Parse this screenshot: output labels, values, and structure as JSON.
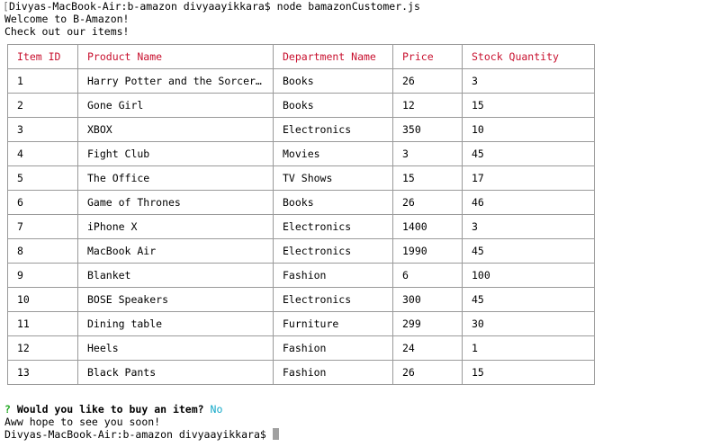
{
  "terminal": {
    "prompt_line": "Divyas-MacBook-Air:b-amazon divyaayikkara$ node bamazonCustomer.js",
    "welcome": "Welcome to B-Amazon!",
    "check_out": "Check out our items!",
    "question_mark": "?",
    "question": "Would you like to buy an item?",
    "answer": "No",
    "farewell": "Aww hope to see you soon!",
    "final_prompt": "Divyas-MacBook-Air:b-amazon divyaayikkara$"
  },
  "table": {
    "headers": [
      "Item ID",
      "Product Name",
      "Department Name",
      "Price",
      "Stock Quantity"
    ],
    "rows": [
      [
        "1",
        "Harry Potter and the Sorcer…",
        "Books",
        "26",
        "3"
      ],
      [
        "2",
        "Gone Girl",
        "Books",
        "12",
        "15"
      ],
      [
        "3",
        "XBOX",
        "Electronics",
        "350",
        "10"
      ],
      [
        "4",
        "Fight Club",
        "Movies",
        "3",
        "45"
      ],
      [
        "5",
        "The Office",
        "TV Shows",
        "15",
        "17"
      ],
      [
        "6",
        "Game of Thrones",
        "Books",
        "26",
        "46"
      ],
      [
        "7",
        "iPhone X",
        "Electronics",
        "1400",
        "3"
      ],
      [
        "8",
        "MacBook Air",
        "Electronics",
        "1990",
        "45"
      ],
      [
        "9",
        "Blanket",
        "Fashion",
        "6",
        "100"
      ],
      [
        "10",
        "BOSE Speakers",
        "Electronics",
        "300",
        "45"
      ],
      [
        "11",
        "Dining table",
        "Furniture",
        "299",
        "30"
      ],
      [
        "12",
        "Heels",
        "Fashion",
        "24",
        "1"
      ],
      [
        "13",
        "Black Pants",
        "Fashion",
        "26",
        "15"
      ]
    ]
  },
  "colors": {
    "header_text": "#c8102e",
    "question_mark": "#22a822",
    "answer": "#13a8c8",
    "cursor": "#a0a0a0",
    "table_border": "#9a9a9a"
  }
}
